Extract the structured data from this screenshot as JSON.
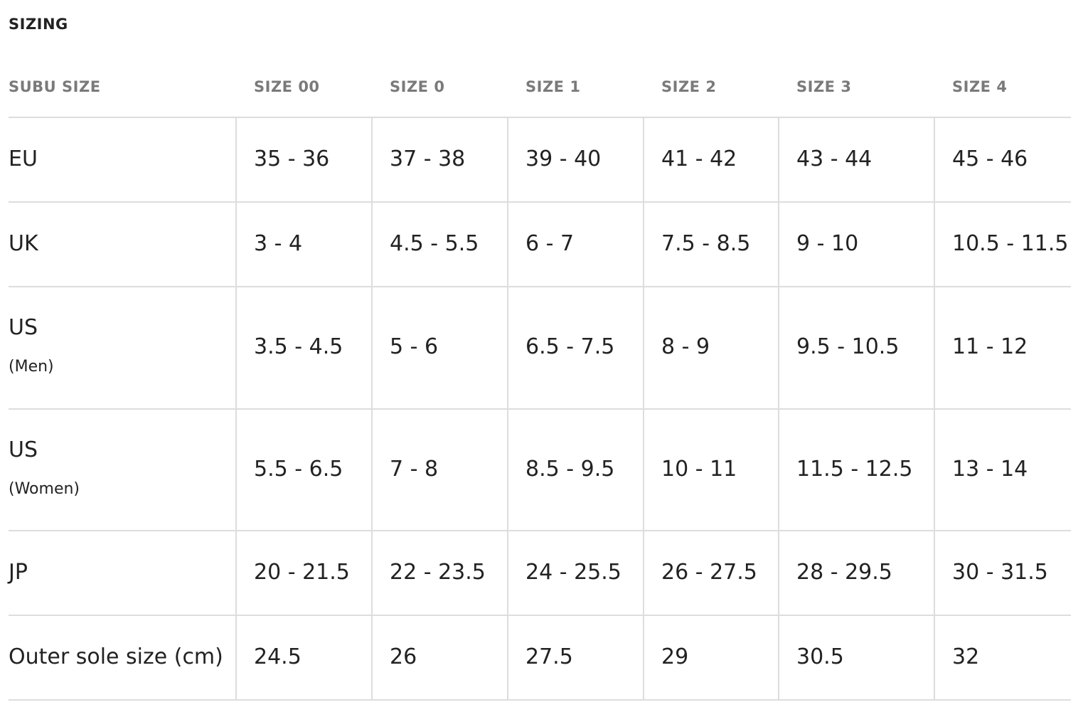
{
  "header": {
    "title": "SIZING"
  },
  "table": {
    "columns": [
      "SUBU SIZE",
      "SIZE 00",
      "SIZE 0",
      "SIZE 1",
      "SIZE 2",
      "SIZE 3",
      "SIZE 4"
    ],
    "rows": [
      {
        "label": "EU",
        "cells": [
          "35 - 36",
          "37 - 38",
          "39 - 40",
          "41 - 42",
          "43 - 44",
          "45 - 46"
        ]
      },
      {
        "label": "UK",
        "cells": [
          "3 - 4",
          "4.5 - 5.5",
          "6 - 7",
          "7.5 - 8.5",
          "9 - 10",
          "10.5 - 11.5"
        ]
      },
      {
        "label": "US",
        "note": "(Men)",
        "cells": [
          "3.5 - 4.5",
          "5 - 6",
          "6.5 - 7.5",
          "8 - 9",
          "9.5 - 10.5",
          "11 - 12"
        ]
      },
      {
        "label": "US",
        "note": "(Women)",
        "cells": [
          "5.5 - 6.5",
          "7 - 8",
          "8.5 - 9.5",
          "10 - 11",
          "11.5 - 12.5",
          "13 - 14"
        ]
      },
      {
        "label": "JP",
        "cells": [
          "20 - 21.5",
          "22 - 23.5",
          "24 - 25.5",
          "26 - 27.5",
          "28 - 29.5",
          "30 - 31.5"
        ]
      },
      {
        "label": "Outer sole size (cm)",
        "cells": [
          "24.5",
          "26",
          "27.5",
          "29",
          "30.5",
          "32"
        ]
      }
    ]
  }
}
